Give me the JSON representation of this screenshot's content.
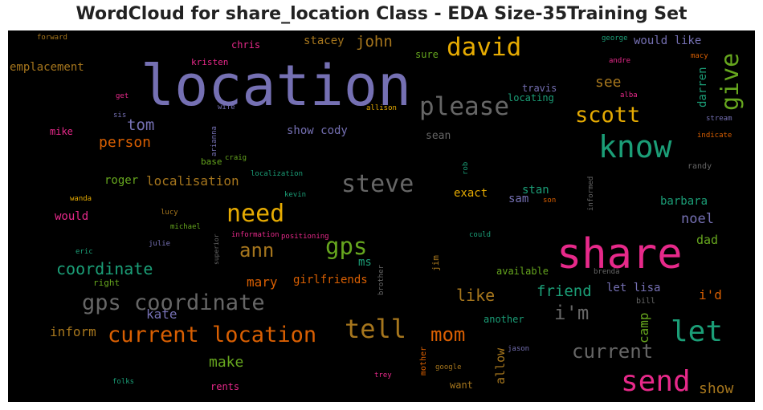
{
  "title": "WordCloud for share_location Class - EDA Size-35Training Set",
  "words": [
    {
      "text": "location",
      "color": "#7570b3"
    },
    {
      "text": "share",
      "color": "#e7298a"
    },
    {
      "text": "know",
      "color": "#1b9e77"
    },
    {
      "text": "send",
      "color": "#e7298a"
    },
    {
      "text": "please",
      "color": "#666666"
    },
    {
      "text": "current location",
      "color": "#d95f02"
    },
    {
      "text": "gps coordinate",
      "color": "#666666"
    },
    {
      "text": "david",
      "color": "#e6ab02"
    },
    {
      "text": "tell",
      "color": "#a6761d"
    },
    {
      "text": "let",
      "color": "#1b9e77"
    },
    {
      "text": "need",
      "color": "#e6ab02"
    },
    {
      "text": "steve",
      "color": "#666666"
    },
    {
      "text": "give",
      "color": "#66a61e"
    },
    {
      "text": "scott",
      "color": "#e6ab02"
    },
    {
      "text": "current",
      "color": "#666666"
    },
    {
      "text": "mom",
      "color": "#d95f02"
    },
    {
      "text": "gps",
      "color": "#66a61e"
    },
    {
      "text": "ann",
      "color": "#a6761d"
    },
    {
      "text": "i'm",
      "color": "#666666"
    },
    {
      "text": "tom",
      "color": "#7570b3"
    },
    {
      "text": "coordinate",
      "color": "#1b9e77"
    },
    {
      "text": "john",
      "color": "#a6761d"
    },
    {
      "text": "person",
      "color": "#d95f02"
    },
    {
      "text": "localisation",
      "color": "#a6761d"
    },
    {
      "text": "like",
      "color": "#a6761d"
    },
    {
      "text": "friend",
      "color": "#1b9e77"
    },
    {
      "text": "see",
      "color": "#a6761d"
    },
    {
      "text": "show",
      "color": "#a6761d"
    },
    {
      "text": "inform",
      "color": "#a6761d"
    },
    {
      "text": "make",
      "color": "#66a61e"
    },
    {
      "text": "mary",
      "color": "#d95f02"
    },
    {
      "text": "kate",
      "color": "#7570b3"
    },
    {
      "text": "noel",
      "color": "#7570b3"
    },
    {
      "text": "barbara",
      "color": "#1b9e77"
    },
    {
      "text": "stan",
      "color": "#1b9e77"
    },
    {
      "text": "exact",
      "color": "#e6ab02"
    },
    {
      "text": "sam",
      "color": "#7570b3"
    },
    {
      "text": "i'd",
      "color": "#d95f02"
    },
    {
      "text": "dad",
      "color": "#66a61e"
    },
    {
      "text": "camp",
      "color": "#66a61e"
    },
    {
      "text": "allow",
      "color": "#a6761d"
    },
    {
      "text": "darren",
      "color": "#1b9e77"
    },
    {
      "text": "let lisa",
      "color": "#7570b3"
    },
    {
      "text": "girlfriends",
      "color": "#d95f02"
    },
    {
      "text": "show cody",
      "color": "#7570b3"
    },
    {
      "text": "stacey",
      "color": "#a6761d"
    },
    {
      "text": "would like",
      "color": "#7570b3"
    },
    {
      "text": "roger",
      "color": "#66a61e"
    },
    {
      "text": "would",
      "color": "#e7298a"
    },
    {
      "text": "emplacement",
      "color": "#a6761d"
    },
    {
      "text": "chris",
      "color": "#e7298a"
    },
    {
      "text": "kristen",
      "color": "#e7298a"
    },
    {
      "text": "travis",
      "color": "#7570b3"
    },
    {
      "text": "locating",
      "color": "#1b9e77"
    },
    {
      "text": "sure",
      "color": "#66a61e"
    },
    {
      "text": "sean",
      "color": "#666666"
    },
    {
      "text": "mike",
      "color": "#e7298a"
    },
    {
      "text": "ms",
      "color": "#1b9e77"
    },
    {
      "text": "available",
      "color": "#66a61e"
    },
    {
      "text": "another",
      "color": "#1b9e77"
    },
    {
      "text": "want",
      "color": "#a6761d"
    },
    {
      "text": "rents",
      "color": "#e7298a"
    },
    {
      "text": "right",
      "color": "#66a61e"
    },
    {
      "text": "bill",
      "color": "#666666"
    },
    {
      "text": "base",
      "color": "#66a61e"
    },
    {
      "text": "randy",
      "color": "#666666"
    },
    {
      "text": "forward",
      "color": "#a6761d"
    },
    {
      "text": "george",
      "color": "#1b9e77"
    },
    {
      "text": "andre",
      "color": "#e7298a"
    },
    {
      "text": "macy",
      "color": "#d95f02"
    },
    {
      "text": "alba",
      "color": "#e7298a"
    },
    {
      "text": "get",
      "color": "#e7298a"
    },
    {
      "text": "wife",
      "color": "#7570b3"
    },
    {
      "text": "allison",
      "color": "#e6ab02"
    },
    {
      "text": "sis",
      "color": "#7570b3"
    },
    {
      "text": "craig",
      "color": "#66a61e"
    },
    {
      "text": "stream",
      "color": "#7570b3"
    },
    {
      "text": "indicate",
      "color": "#d95f02"
    },
    {
      "text": "wanda",
      "color": "#e6ab02"
    },
    {
      "text": "localization",
      "color": "#1b9e77"
    },
    {
      "text": "son",
      "color": "#d95f02"
    },
    {
      "text": "kevin",
      "color": "#1b9e77"
    },
    {
      "text": "lucy",
      "color": "#a6761d"
    },
    {
      "text": "michael",
      "color": "#66a61e"
    },
    {
      "text": "information",
      "color": "#e7298a"
    },
    {
      "text": "positioning",
      "color": "#e7298a"
    },
    {
      "text": "julie",
      "color": "#7570b3"
    },
    {
      "text": "could",
      "color": "#1b9e77"
    },
    {
      "text": "eric",
      "color": "#1b9e77"
    },
    {
      "text": "brenda",
      "color": "#666666"
    },
    {
      "text": "jason",
      "color": "#7570b3"
    },
    {
      "text": "google",
      "color": "#a6761d"
    },
    {
      "text": "trey",
      "color": "#e7298a"
    },
    {
      "text": "folks",
      "color": "#1b9e77"
    },
    {
      "text": "arianna",
      "color": "#7570b3"
    },
    {
      "text": "superior",
      "color": "#666666"
    },
    {
      "text": "brother",
      "color": "#666666"
    },
    {
      "text": "jim",
      "color": "#a6761d"
    },
    {
      "text": "mother",
      "color": "#d95f02"
    },
    {
      "text": "rob",
      "color": "#1b9e77"
    },
    {
      "text": "informed",
      "color": "#666666"
    }
  ]
}
